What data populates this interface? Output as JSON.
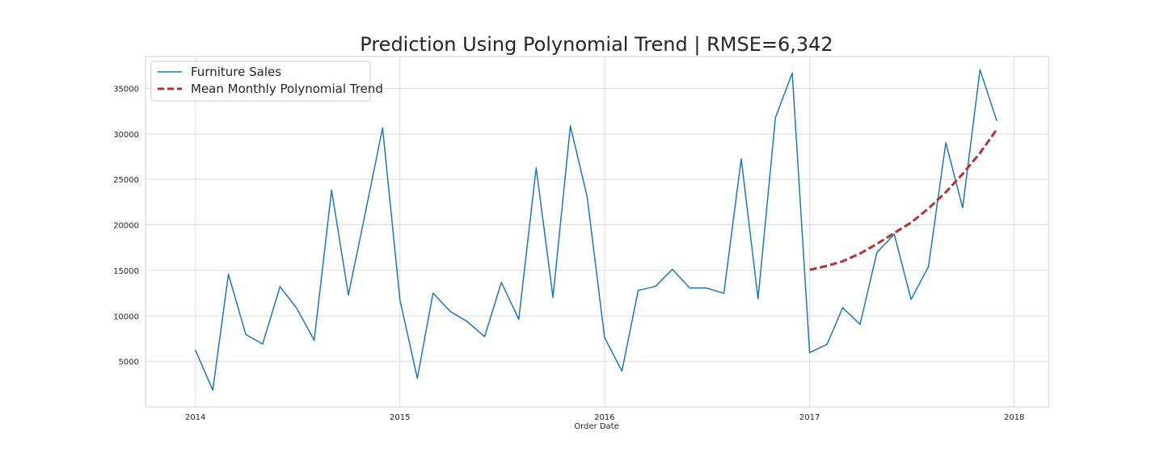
{
  "chart_data": {
    "type": "line",
    "title": "Prediction Using Polynomial Trend | RMSE=6,342",
    "xlabel": "Order Date",
    "ylabel": "",
    "x_tick_labels": [
      "2014",
      "2015",
      "2016",
      "2017",
      "2018"
    ],
    "y_ticks": [
      5000,
      10000,
      15000,
      20000,
      25000,
      30000,
      35000
    ],
    "xlim": [
      "2013-10-04",
      "2018-03-03"
    ],
    "ylim": [
      0,
      38500
    ],
    "grid": true,
    "legend_position": "upper-left",
    "series": [
      {
        "name": "Furniture Sales",
        "color": "#1f77b4",
        "style": "solid",
        "x": [
          "2014-01",
          "2014-02",
          "2014-03",
          "2014-04",
          "2014-05",
          "2014-06",
          "2014-07",
          "2014-08",
          "2014-09",
          "2014-10",
          "2014-11",
          "2014-12",
          "2015-01",
          "2015-02",
          "2015-03",
          "2015-04",
          "2015-05",
          "2015-06",
          "2015-07",
          "2015-08",
          "2015-09",
          "2015-10",
          "2015-11",
          "2015-12",
          "2016-01",
          "2016-02",
          "2016-03",
          "2016-04",
          "2016-05",
          "2016-06",
          "2016-07",
          "2016-08",
          "2016-09",
          "2016-10",
          "2016-11",
          "2016-12",
          "2017-01",
          "2017-02",
          "2017-03",
          "2017-04",
          "2017-05",
          "2017-06",
          "2017-07",
          "2017-08",
          "2017-09",
          "2017-10",
          "2017-11",
          "2017-12"
        ],
        "values": [
          6242,
          1839,
          14573,
          7944,
          6912,
          13206,
          10821,
          7321,
          23817,
          12304,
          21565,
          30645,
          11740,
          3134,
          12499,
          10475,
          9375,
          7714,
          13675,
          9638,
          26273,
          12026,
          30881,
          23086,
          7622,
          3926,
          12801,
          13243,
          15119,
          13070,
          13060,
          12483,
          27263,
          11872,
          31783,
          36678,
          5964,
          6866,
          10893,
          9065,
          16957,
          18977,
          11803,
          15403,
          29028,
          21884,
          37056,
          31407
        ]
      },
      {
        "name": "Mean Monthly Polynomial Trend",
        "color": "#b5313a",
        "style": "dashed",
        "x": [
          "2017-01",
          "2017-02",
          "2017-03",
          "2017-04",
          "2017-05",
          "2017-06",
          "2017-07",
          "2017-08",
          "2017-09",
          "2017-10",
          "2017-11",
          "2017-12"
        ],
        "values": [
          15050,
          15500,
          16000,
          16850,
          17900,
          19100,
          20250,
          21800,
          23600,
          25600,
          27900,
          30500
        ]
      }
    ]
  }
}
